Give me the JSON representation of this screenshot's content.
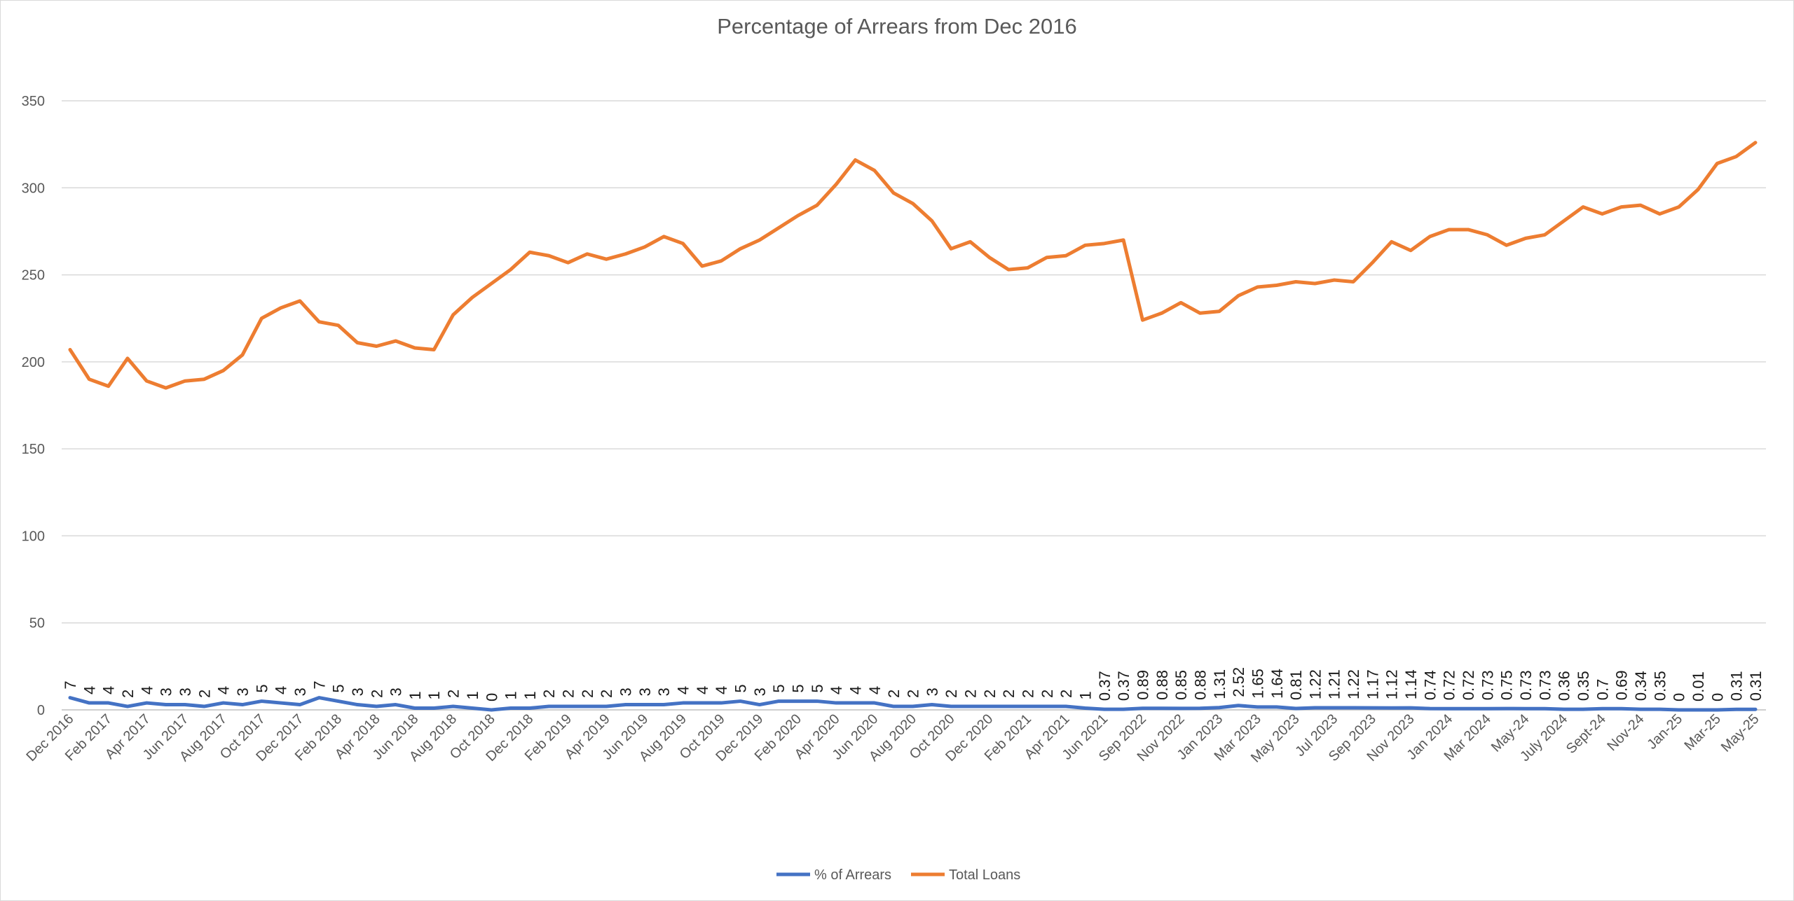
{
  "chart_data": {
    "type": "line",
    "title": "Percentage of Arrears from Dec 2016",
    "xlabel": "",
    "ylabel": "",
    "ylim": [
      0,
      350
    ],
    "yticks": [
      0,
      50,
      100,
      150,
      200,
      250,
      300,
      350
    ],
    "grid": true,
    "legend_position": "bottom",
    "colors": {
      "% of Arrears": "#4472C4",
      "Total Loans": "#ED7D31",
      "grid": "#d9d9d9",
      "text": "#595959"
    },
    "tick_labels": [
      "Dec 2016",
      "Feb 2017",
      "Apr 2017",
      "Jun 2017",
      "Aug 2017",
      "Oct 2017",
      "Dec 2017",
      "Feb 2018",
      "Apr 2018",
      "Jun 2018",
      "Aug 2018",
      "Oct 2018",
      "Dec 2018",
      "Feb 2019",
      "Apr 2019",
      "Jun 2019",
      "Aug 2019",
      "Oct 2019",
      "Dec 2019",
      "Feb 2020",
      "Apr 2020",
      "Jun 2020",
      "Aug 2020",
      "Oct 2020",
      "Dec 2020",
      "Feb 2021",
      "Apr 2021",
      "Jun 2021",
      "Sep 2022",
      "Nov 2022",
      "Jan 2023",
      "Mar 2023",
      "May 2023",
      "Jul 2023",
      "Sep 2023",
      "Nov 2023",
      "Jan 2024",
      "Mar 2024",
      "May-24",
      "July 2024",
      "Sept-24",
      "Nov-24",
      "Jan-25",
      "Mar-25",
      "May-25"
    ],
    "series": [
      {
        "name": "% of Arrears",
        "labels": [
          "7",
          "4",
          "4",
          "2",
          "4",
          "3",
          "3",
          "2",
          "4",
          "3",
          "5",
          "4",
          "3",
          "7",
          "5",
          "3",
          "2",
          "3",
          "1",
          "1",
          "2",
          "1",
          "0",
          "1",
          "1",
          "2",
          "2",
          "2",
          "2",
          "3",
          "3",
          "3",
          "4",
          "4",
          "4",
          "5",
          "3",
          "5",
          "5",
          "5",
          "4",
          "4",
          "4",
          "2",
          "2",
          "3",
          "2",
          "2",
          "2",
          "2",
          "2",
          "2",
          "2",
          "1",
          "0.37",
          "0.37",
          "0.89",
          "0.88",
          "0.85",
          "0.88",
          "1.31",
          "2.52",
          "1.65",
          "1.64",
          "0.81",
          "1.22",
          "1.21",
          "1.22",
          "1.17",
          "1.12",
          "1.14",
          "0.74",
          "0.72",
          "0.72",
          "0.73",
          "0.75",
          "0.73",
          "0.73",
          "0.36",
          "0.35",
          "0.7",
          "0.69",
          "0.34",
          "0.35",
          "0",
          "0.01",
          "0",
          "0.31",
          "0.31"
        ],
        "values": [
          7,
          4,
          4,
          2,
          4,
          3,
          3,
          2,
          4,
          3,
          5,
          4,
          3,
          7,
          5,
          3,
          2,
          3,
          1,
          1,
          2,
          1,
          0,
          1,
          1,
          2,
          2,
          2,
          2,
          3,
          3,
          3,
          4,
          4,
          4,
          5,
          3,
          5,
          5,
          5,
          4,
          4,
          4,
          2,
          2,
          3,
          2,
          2,
          2,
          2,
          2,
          2,
          2,
          1,
          0.37,
          0.37,
          0.89,
          0.88,
          0.85,
          0.88,
          1.31,
          2.52,
          1.65,
          1.64,
          0.81,
          1.22,
          1.21,
          1.22,
          1.17,
          1.12,
          1.14,
          0.74,
          0.72,
          0.72,
          0.73,
          0.75,
          0.73,
          0.73,
          0.36,
          0.35,
          0.7,
          0.69,
          0.34,
          0.35,
          0,
          0.01,
          0,
          0.31,
          0.31
        ]
      },
      {
        "name": "Total Loans",
        "values": [
          207,
          190,
          186,
          202,
          189,
          185,
          189,
          190,
          195,
          204,
          225,
          231,
          235,
          223,
          221,
          211,
          209,
          212,
          208,
          207,
          227,
          237,
          245,
          253,
          263,
          261,
          257,
          262,
          259,
          262,
          266,
          272,
          268,
          255,
          258,
          265,
          270,
          277,
          284,
          290,
          302,
          316,
          310,
          297,
          291,
          281,
          265,
          269,
          260,
          253,
          254,
          260,
          261,
          267,
          268,
          270,
          224,
          228,
          234,
          228,
          229,
          238,
          243,
          244,
          246,
          245,
          247,
          246,
          257,
          269,
          264,
          272,
          276,
          276,
          273,
          267,
          271,
          273,
          281,
          289,
          285,
          289,
          290,
          285,
          289,
          299,
          314,
          318,
          326
        ]
      }
    ]
  }
}
